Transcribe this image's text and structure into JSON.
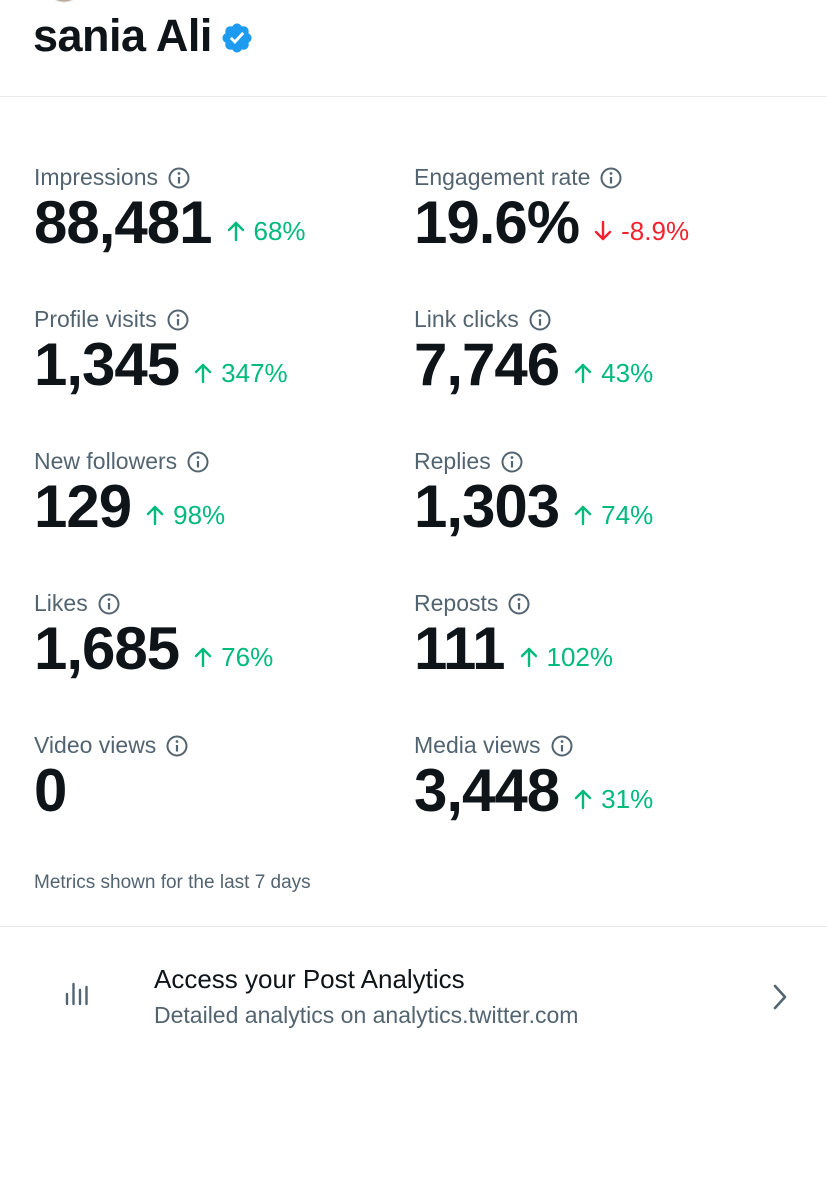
{
  "header": {
    "name": "sania Ali"
  },
  "metrics": [
    {
      "label": "Impressions",
      "value": "88,481",
      "change": "68%",
      "trend": "up"
    },
    {
      "label": "Engagement rate",
      "value": "19.6%",
      "change": "-8.9%",
      "trend": "down"
    },
    {
      "label": "Profile visits",
      "value": "1,345",
      "change": "347%",
      "trend": "up"
    },
    {
      "label": "Link clicks",
      "value": "7,746",
      "change": "43%",
      "trend": "up"
    },
    {
      "label": "New followers",
      "value": "129",
      "change": "98%",
      "trend": "up"
    },
    {
      "label": "Replies",
      "value": "1,303",
      "change": "74%",
      "trend": "up"
    },
    {
      "label": "Likes",
      "value": "1,685",
      "change": "76%",
      "trend": "up"
    },
    {
      "label": "Reposts",
      "value": "111",
      "change": "102%",
      "trend": "up"
    },
    {
      "label": "Video views",
      "value": "0"
    },
    {
      "label": "Media views",
      "value": "3,448",
      "change": "31%",
      "trend": "up"
    }
  ],
  "footnote": "Metrics shown for the last 7 days",
  "analytics_link": {
    "title": "Access your Post Analytics",
    "subtitle": "Detailed analytics on analytics.twitter.com"
  }
}
